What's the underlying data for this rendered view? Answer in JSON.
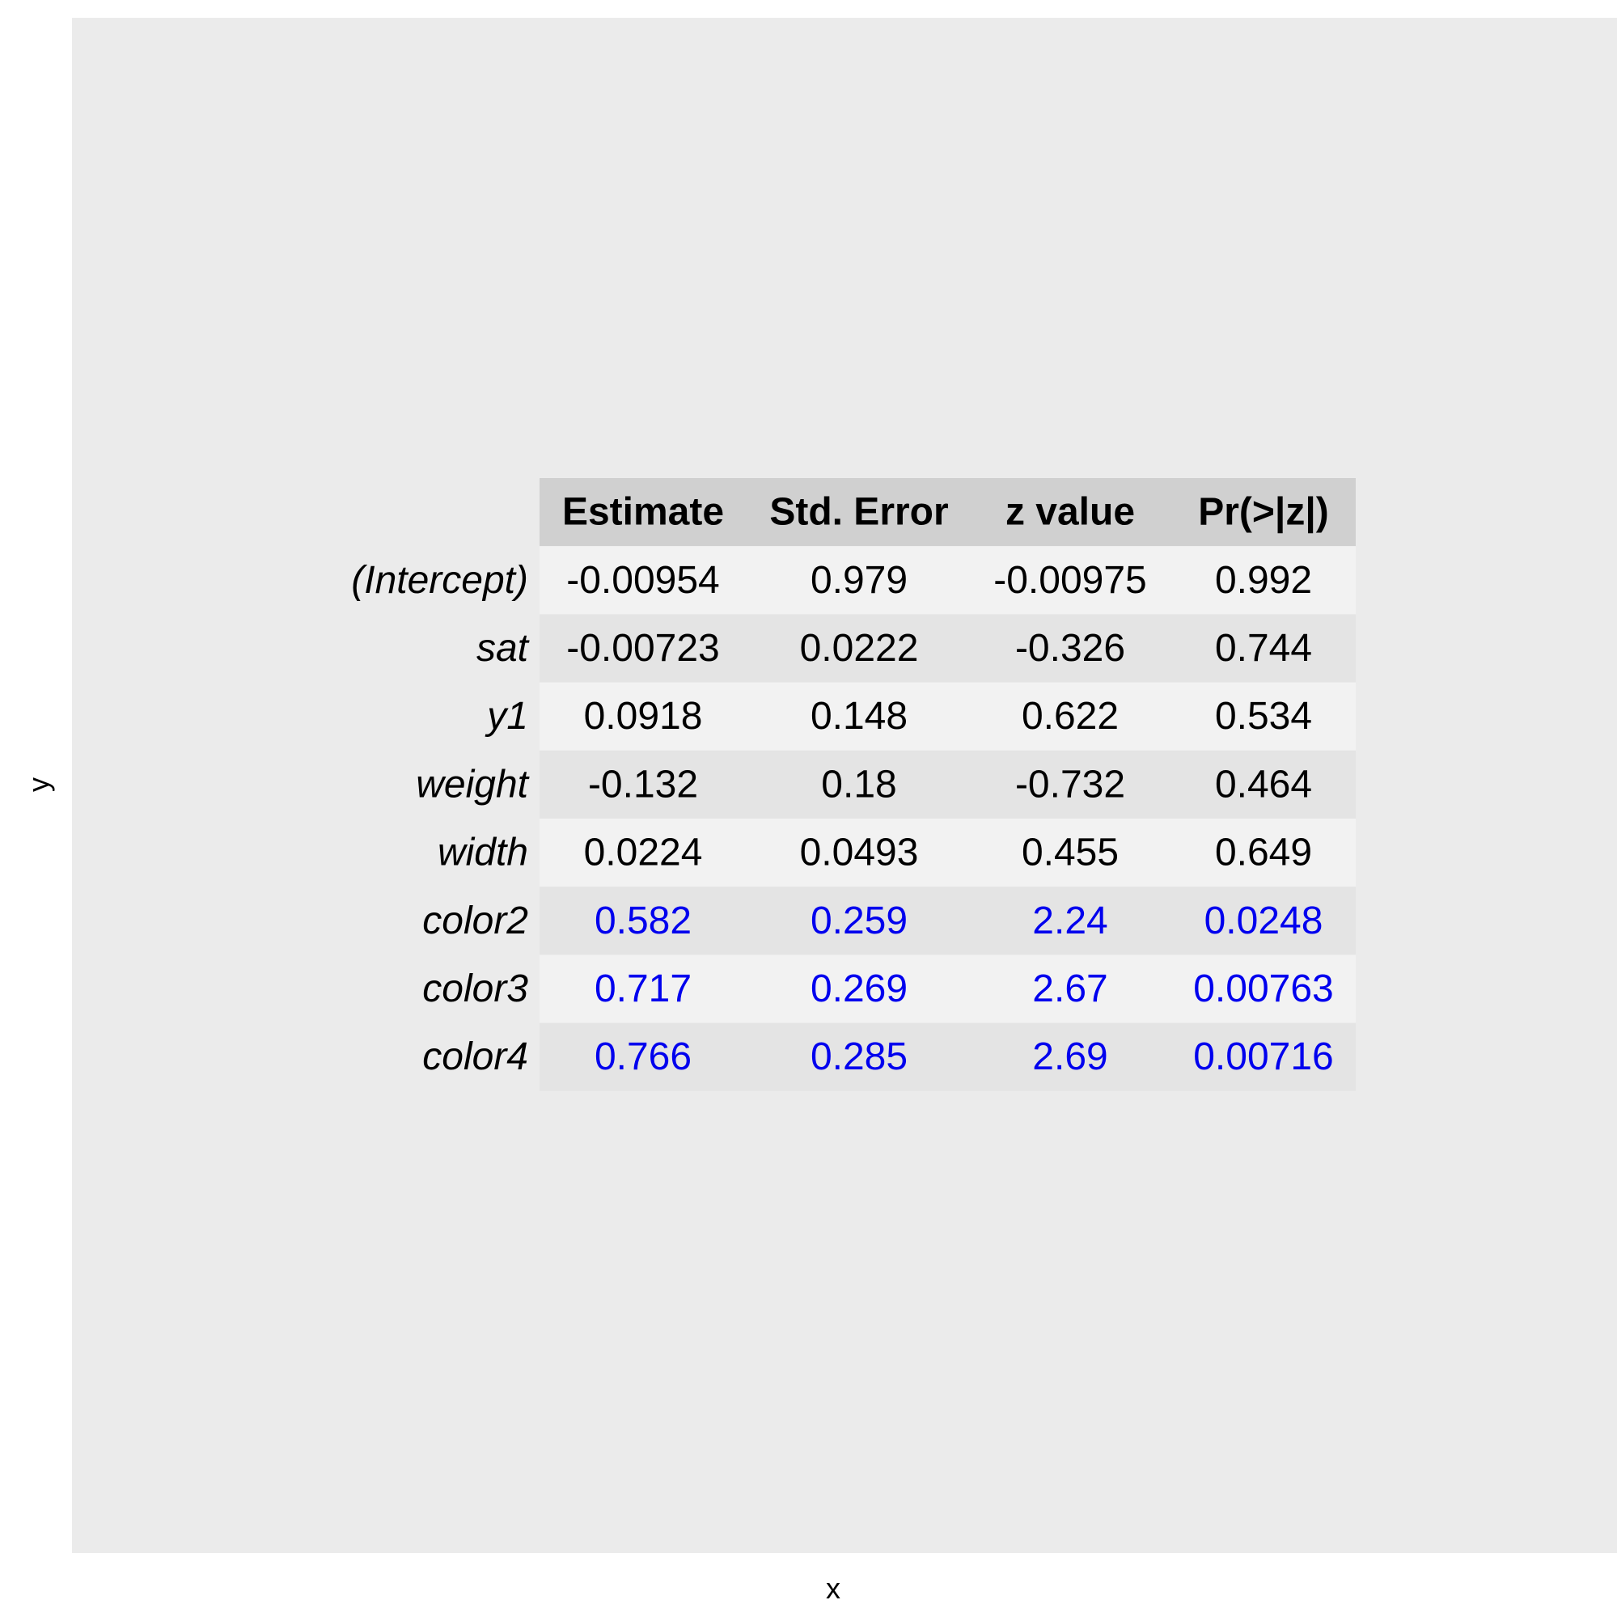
{
  "chart_data": {
    "type": "table",
    "xlabel": "x",
    "ylabel": "y",
    "columns": [
      "Estimate",
      "Std. Error",
      "z value",
      "Pr(>|z|)"
    ],
    "rows": [
      {
        "label": "(Intercept)",
        "values": [
          "-0.00954",
          "0.979",
          "-0.00975",
          "0.992"
        ],
        "highlight": false
      },
      {
        "label": "sat",
        "values": [
          "-0.00723",
          "0.0222",
          "-0.326",
          "0.744"
        ],
        "highlight": false
      },
      {
        "label": "y1",
        "values": [
          "0.0918",
          "0.148",
          "0.622",
          "0.534"
        ],
        "highlight": false
      },
      {
        "label": "weight",
        "values": [
          "-0.132",
          "0.18",
          "-0.732",
          "0.464"
        ],
        "highlight": false
      },
      {
        "label": "width",
        "values": [
          "0.0224",
          "0.0493",
          "0.455",
          "0.649"
        ],
        "highlight": false
      },
      {
        "label": "color2",
        "values": [
          "0.582",
          "0.259",
          "2.24",
          "0.0248"
        ],
        "highlight": true
      },
      {
        "label": "color3",
        "values": [
          "0.717",
          "0.269",
          "2.67",
          "0.00763"
        ],
        "highlight": true
      },
      {
        "label": "color4",
        "values": [
          "0.766",
          "0.285",
          "2.69",
          "0.00716"
        ],
        "highlight": true
      }
    ],
    "colors": {
      "panel_background": "#ebebeb",
      "header_background": "#d0d0d0",
      "row_light": "#f2f2f2",
      "row_dark": "#e4e4e4",
      "text": "#000000",
      "highlight_text": "#0000ee"
    }
  }
}
